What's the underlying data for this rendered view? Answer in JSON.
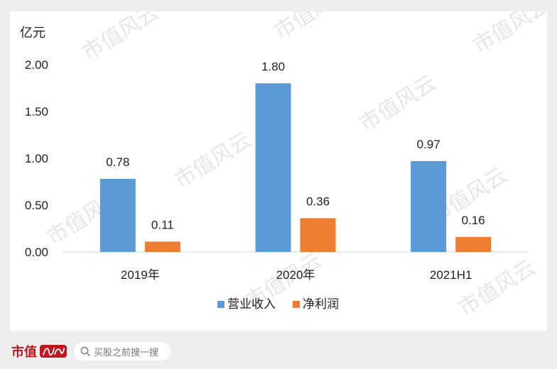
{
  "chart_data": {
    "type": "bar",
    "unit_label": "亿元",
    "categories": [
      "2019年",
      "2020年",
      "2021H1"
    ],
    "series": [
      {
        "name": "营业收入",
        "color": "#5b9bd5",
        "values": [
          0.78,
          1.8,
          0.97
        ],
        "labels": [
          "0.78",
          "1.80",
          "0.97"
        ]
      },
      {
        "name": "净利润",
        "color": "#ed7d31",
        "values": [
          0.11,
          0.36,
          0.16
        ],
        "labels": [
          "0.11",
          "0.36",
          "0.16"
        ]
      }
    ],
    "yticks": [
      "0.00",
      "0.50",
      "1.00",
      "1.50",
      "2.00"
    ],
    "ylim": [
      0,
      2.0
    ],
    "legend_position": "bottom",
    "grid": false
  },
  "footer": {
    "brand_text": "市值",
    "brand_script": "风云",
    "search_placeholder": "买股之前搜一搜",
    "search_icon": "search-icon"
  },
  "watermark": "市值风云"
}
